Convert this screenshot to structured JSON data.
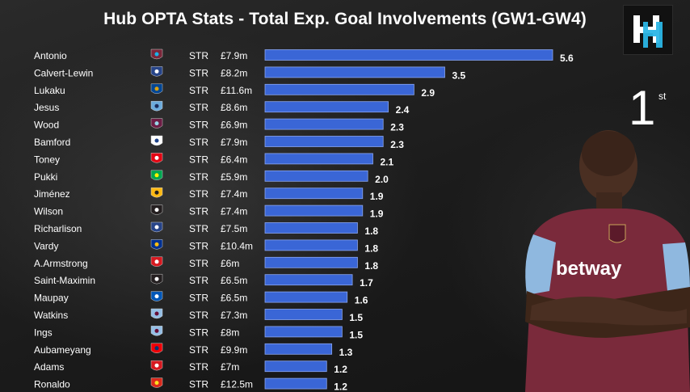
{
  "header": {
    "title": "Hub OPTA Stats - Total Exp. Goal Involvements (GW1-GW4)"
  },
  "rank": {
    "number": "1",
    "suffix": "st"
  },
  "sponsor": {
    "text": "betway"
  },
  "colors": {
    "bar": "#3a66d6",
    "bar_edge": "#8aa6ef",
    "background": "#1f1f1f"
  },
  "chart_data": {
    "type": "bar",
    "orientation": "horizontal",
    "title": "Hub OPTA Stats - Total Exp. Goal Involvements (GW1-GW4)",
    "rows": [
      {
        "name": "Antonio",
        "club_icon": "west-ham-crest",
        "pos": "STR",
        "price": "£7.9m",
        "value": 5.6
      },
      {
        "name": "Calvert-Lewin",
        "club_icon": "everton-crest",
        "pos": "STR",
        "price": "£8.2m",
        "value": 3.5
      },
      {
        "name": "Lukaku",
        "club_icon": "chelsea-crest",
        "pos": "STR",
        "price": "£11.6m",
        "value": 2.9
      },
      {
        "name": "Jesus",
        "club_icon": "man-city-crest",
        "pos": "STR",
        "price": "£8.6m",
        "value": 2.4
      },
      {
        "name": "Wood",
        "club_icon": "burnley-crest",
        "pos": "STR",
        "price": "£6.9m",
        "value": 2.3
      },
      {
        "name": "Bamford",
        "club_icon": "leeds-crest",
        "pos": "STR",
        "price": "£7.9m",
        "value": 2.3
      },
      {
        "name": "Toney",
        "club_icon": "brentford-crest",
        "pos": "STR",
        "price": "£6.4m",
        "value": 2.1
      },
      {
        "name": "Pukki",
        "club_icon": "norwich-crest",
        "pos": "STR",
        "price": "£5.9m",
        "value": 2.0
      },
      {
        "name": "Jiménez",
        "club_icon": "wolves-crest",
        "pos": "STR",
        "price": "£7.4m",
        "value": 1.9
      },
      {
        "name": "Wilson",
        "club_icon": "newcastle-crest",
        "pos": "STR",
        "price": "£7.4m",
        "value": 1.9
      },
      {
        "name": "Richarlison",
        "club_icon": "everton-crest",
        "pos": "STR",
        "price": "£7.5m",
        "value": 1.8
      },
      {
        "name": "Vardy",
        "club_icon": "leicester-crest",
        "pos": "STR",
        "price": "£10.4m",
        "value": 1.8
      },
      {
        "name": "A.Armstrong",
        "club_icon": "southampton-crest",
        "pos": "STR",
        "price": "£6m",
        "value": 1.8
      },
      {
        "name": "Saint-Maximin",
        "club_icon": "newcastle-crest",
        "pos": "STR",
        "price": "£6.5m",
        "value": 1.7
      },
      {
        "name": "Maupay",
        "club_icon": "brighton-crest",
        "pos": "STR",
        "price": "£6.5m",
        "value": 1.6
      },
      {
        "name": "Watkins",
        "club_icon": "aston-villa-crest",
        "pos": "STR",
        "price": "£7.3m",
        "value": 1.5
      },
      {
        "name": "Ings",
        "club_icon": "aston-villa-crest",
        "pos": "STR",
        "price": "£8m",
        "value": 1.5
      },
      {
        "name": "Aubameyang",
        "club_icon": "arsenal-crest",
        "pos": "STR",
        "price": "£9.9m",
        "value": 1.3
      },
      {
        "name": "Adams",
        "club_icon": "southampton-crest",
        "pos": "STR",
        "price": "£7m",
        "value": 1.2
      },
      {
        "name": "Ronaldo",
        "club_icon": "man-utd-crest",
        "pos": "STR",
        "price": "£12.5m",
        "value": 1.2
      }
    ],
    "xlim": [
      0,
      5.6
    ],
    "grid": false,
    "legend": "none"
  }
}
